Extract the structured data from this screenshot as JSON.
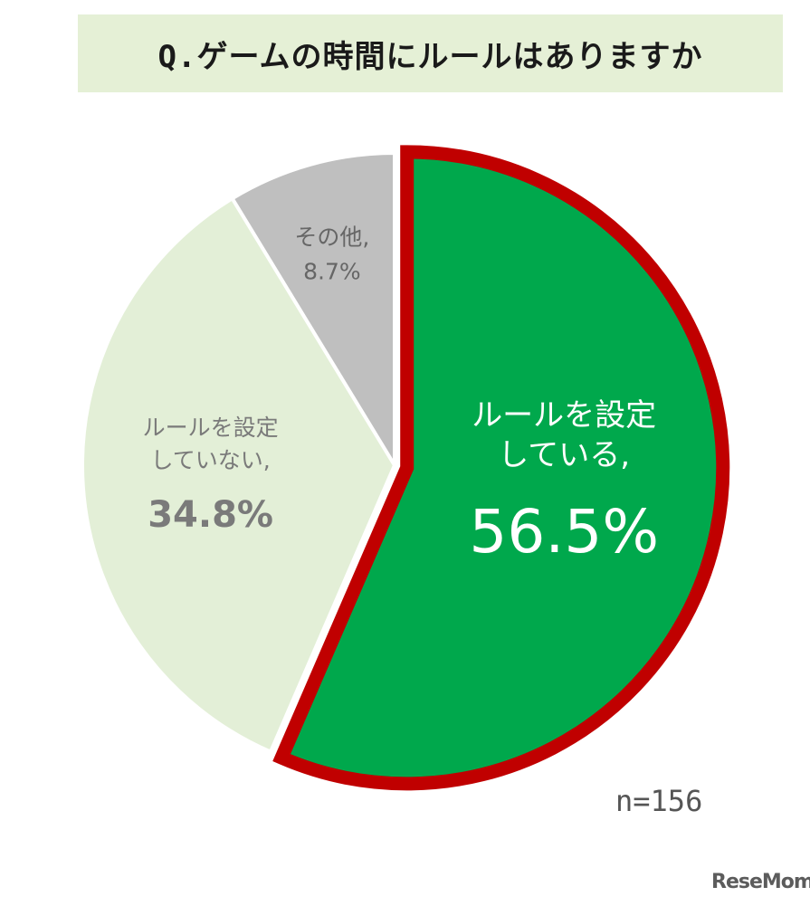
{
  "chart_data": {
    "type": "pie",
    "title": "Q.ゲームの時間にルールはありますか",
    "slices": [
      {
        "label_lines": [
          "ルールを設定",
          "している,"
        ],
        "value": 56.5,
        "value_text": "56.5%",
        "color": "#00a84c",
        "highlight_color": "#c00000",
        "text_color": "#ffffff"
      },
      {
        "label_lines": [
          "ルールを設定",
          "していない,"
        ],
        "value": 34.8,
        "value_text": "34.8%",
        "color": "#e3efd7",
        "text_color": "#7a7a7a"
      },
      {
        "label_lines": [
          "その他,"
        ],
        "value": 8.7,
        "value_text": "8.7%",
        "color": "#bfbfbf",
        "text_color": "#666666"
      }
    ],
    "note": "n=156",
    "start": "12 o'clock",
    "direction": "clockwise"
  },
  "watermark": "ReseMom"
}
